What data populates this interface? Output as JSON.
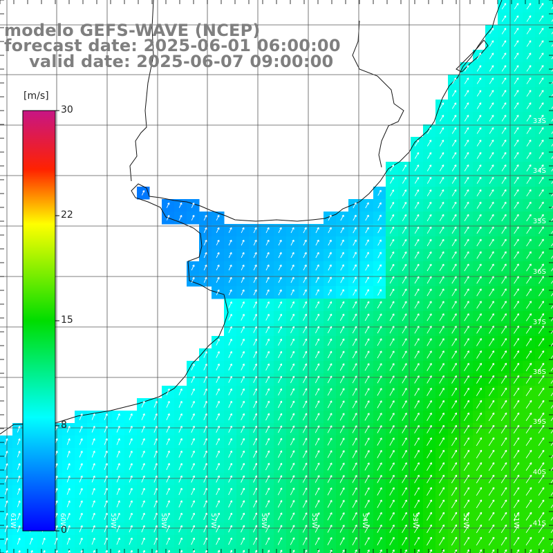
{
  "header": {
    "model_line": "modelo GEFS-WAVE (NCEP)",
    "forecast_line": "forecast date: 2025-06-01 06:00:00",
    "valid_line": "valid date: 2025-06-07 09:00:00"
  },
  "colorbar": {
    "unit": "[m/s]",
    "ticks": [
      "30",
      "22",
      "15",
      "8",
      "0"
    ],
    "min": 0,
    "max": 30,
    "colors": [
      "#0000ff",
      "#00ffff",
      "#00cc00",
      "#ffff00",
      "#ff0000",
      "#c71585"
    ]
  },
  "axes": {
    "lat_labels": [
      "33S",
      "34S",
      "35S",
      "36S",
      "37S",
      "38S",
      "39S",
      "40S",
      "41S"
    ],
    "lon_labels": [
      "61W",
      "60W",
      "59W",
      "58W",
      "57W",
      "56W",
      "55W",
      "54W",
      "53W",
      "52W",
      "51W"
    ]
  },
  "colors": {
    "land": "#ffffff",
    "grid": "#555555",
    "coast": "#111111",
    "arrow": "#ffffff",
    "header_text": "#7f7f7f"
  }
}
